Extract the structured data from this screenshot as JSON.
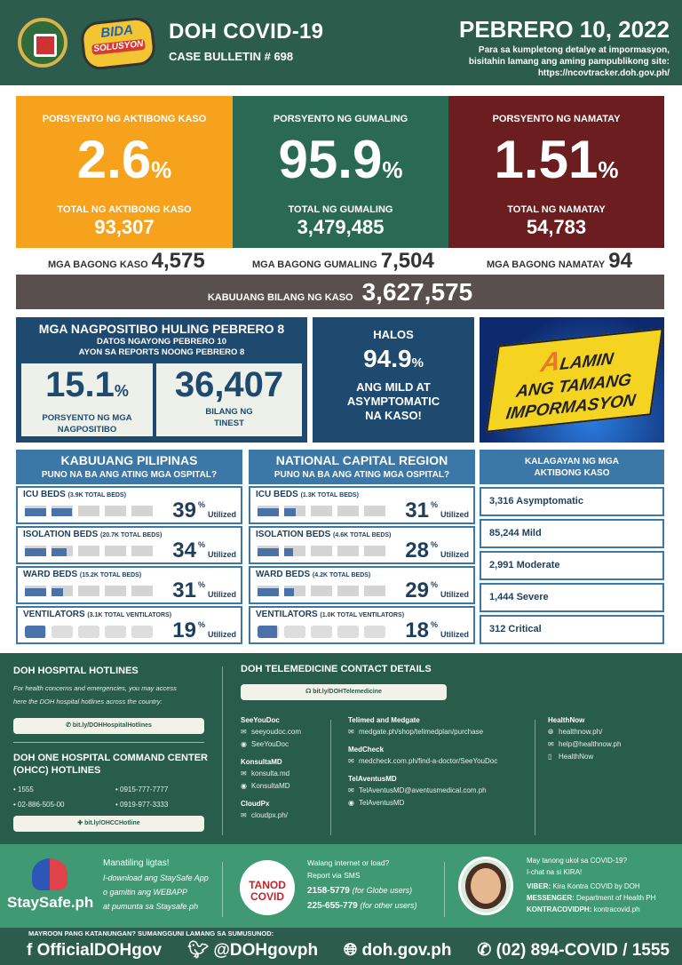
{
  "header": {
    "seal_text": "Republika ng Pilipinas Department of Health",
    "bida_logo": "BIDA SOLUSYON sa COVID-19",
    "title": "DOH COVID-19",
    "bulletin": "CASE BULLETIN # 698",
    "date": "PEBRERO 10, 2022",
    "note_lines": [
      "Para sa kumpletong detalye at impormasyon,",
      "bisitahin lamang ang aming pampublikong site:",
      "https://ncovtracker.doh.gov.ph/"
    ]
  },
  "colors": {
    "active": "#f6a21c",
    "recovered": "#2a6a55",
    "deaths": "#6b1d1f",
    "total": "#5a4f4f",
    "navy": "#1d4a6e",
    "panel_blue": "#3b78a8",
    "green": "#285c4b"
  },
  "cards": [
    {
      "label": "PORSYENTO NG AKTIBONG KASO",
      "percent": "2.6",
      "total_label": "TOTAL NG AKTIBONG KASO",
      "total": "93,307",
      "new_label": "MGA BAGONG KASO",
      "new": "4,575"
    },
    {
      "label": "PORSYENTO NG GUMALING",
      "percent": "95.9",
      "total_label": "TOTAL NG GUMALING",
      "total": "3,479,485",
      "new_label": "MGA BAGONG GUMALING",
      "new": "7,504"
    },
    {
      "label": "PORSYENTO NG NAMATAY",
      "percent": "1.51",
      "total_label": "TOTAL NG NAMATAY",
      "total": "54,783",
      "new_label": "MGA BAGONG NAMATAY",
      "new": "94"
    }
  ],
  "percent_sign": "%",
  "total_cases": {
    "label": "KABUUANG BILANG NG KASO",
    "value": "3,627,575"
  },
  "positivity": {
    "title": "MGA NAGPOSITIBO HULING PEBRERO 8",
    "sub1": "DATOS NGAYONG PEBRERO 10",
    "sub2": "AYON SA REPORTS NOONG PEBRERO 8",
    "rate": "15.1",
    "rate_label_1": "PORSYENTO NG MGA",
    "rate_label_2": "NAGPOSITIBO",
    "tested": "36,407",
    "tested_label_1": "BILANG NG",
    "tested_label_2": "TINEST"
  },
  "halos": {
    "top": "HALOS",
    "value": "94.9",
    "l1": "ANG MILD AT",
    "l2": "ASYMPTOMATIC",
    "l3": "NA KASO!"
  },
  "alamin": {
    "a": "A",
    "l1": "LAMIN",
    "l2": "ANG TAMANG",
    "l3": "IMPORMASYON"
  },
  "hospitals": [
    {
      "title": "KABUUANG PILIPINAS",
      "subtitle": "PUNO NA BA ANG ATING MGA OSPITAL?",
      "rows": [
        {
          "name": "ICU BEDS",
          "detail": "(3.9K TOTAL BEDS)",
          "percent": 39,
          "kind": "bed"
        },
        {
          "name": "ISOLATION BEDS",
          "detail": "(20.7K TOTAL BEDS)",
          "percent": 34,
          "kind": "bed"
        },
        {
          "name": "WARD BEDS",
          "detail": "(15.2K TOTAL BEDS)",
          "percent": 31,
          "kind": "bed"
        },
        {
          "name": "VENTILATORS",
          "detail": "(3.1K TOTAL VENTILATORS)",
          "percent": 19,
          "kind": "vent"
        }
      ]
    },
    {
      "title": "NATIONAL CAPITAL REGION",
      "subtitle": "PUNO NA BA ANG ATING MGA OSPITAL?",
      "rows": [
        {
          "name": "ICU BEDS",
          "detail": "(1.3K TOTAL BEDS)",
          "percent": 31,
          "kind": "bed"
        },
        {
          "name": "ISOLATION BEDS",
          "detail": "(4.6K TOTAL BEDS)",
          "percent": 28,
          "kind": "bed"
        },
        {
          "name": "WARD BEDS",
          "detail": "(4.2K TOTAL BEDS)",
          "percent": 29,
          "kind": "bed"
        },
        {
          "name": "VENTILATORS",
          "detail": "(1.0K TOTAL VENTILATORS)",
          "percent": 18,
          "kind": "vent"
        }
      ]
    }
  ],
  "utilized_label": "Utilized",
  "status": {
    "title_1": "KALAGAYAN NG MGA",
    "title_2": "AKTIBONG KASO",
    "items": [
      "3,316 Asymptomatic",
      "85,244 Mild",
      "2,991 Moderate",
      "1,444 Severe",
      "312 Critical"
    ]
  },
  "hotlines": {
    "title": "DOH HOSPITAL HOTLINES",
    "desc_1": "For health concerns and emergencies, you may access",
    "desc_2": "here the DOH hospital hotlines across the country:",
    "link": "bit.ly/DOHHospitalHotlines",
    "ohcc_title_1": "DOH ONE HOSPITAL COMMAND CENTER",
    "ohcc_title_2": "(OHCC) HOTLINES",
    "numbers": [
      "• 1555",
      "• 0915-777-7777",
      "• 02-886-505-00",
      "• 0919-977-3333"
    ],
    "ohcc_link": "bit.ly/OHCCHotline"
  },
  "telemedicine": {
    "title": "DOH TELEMEDICINE CONTACT DETAILS",
    "link": "bit.ly/DOHTelemedicine",
    "columns": [
      [
        {
          "name": "SeeYouDoc",
          "items": [
            "seeyoudoc.com",
            "SeeYouDoc"
          ]
        },
        {
          "name": "KonsultaMD",
          "items": [
            "konsulta.md",
            "KonsultaMD"
          ]
        },
        {
          "name": "CloudPx",
          "items": [
            "cloudpx.ph/"
          ]
        }
      ],
      [
        {
          "name": "Telimed and Medgate",
          "items": [
            "medgate.ph/shop/telimedplan/purchase"
          ]
        },
        {
          "name": "MedCheck",
          "items": [
            "medcheck.com.ph/find-a-doctor/SeeYouDoc"
          ]
        },
        {
          "name": "TelAventusMD",
          "items": [
            "TelAventusMD@aventusmedical.com.ph",
            "TelAventusMD"
          ]
        }
      ],
      [
        {
          "name": "HealthNow",
          "items": [
            "healthnow.ph/",
            "help@healthnow.ph",
            "HealthNow"
          ]
        }
      ]
    ]
  },
  "staysafe": {
    "logo": "StaySafe.ph",
    "title": "Manatiling ligtas!",
    "l1": "I-download ang StaySafe App",
    "l2": "o gamitin ang WEBAPP",
    "l3": "at pumunta sa Staysafe.ph"
  },
  "tanod": {
    "logo": "TANOD COVID",
    "l1": "Walang internet or load?",
    "l2": "Report via SMS",
    "n1": "2158-5779",
    "n1_note": "(for Globe users)",
    "n2": "225-655-779",
    "n2_note": "(for other users)"
  },
  "kira": {
    "l1": "May tanong ukol sa COVID-19?",
    "l2": "I-chat na si KIRA!",
    "viber_label": "VIBER:",
    "viber": "Kira Kontra COVID by DOH",
    "messenger_label": "MESSENGER:",
    "messenger": "Department of Health PH",
    "kc_label": "KONTRACOVIDPH:",
    "kc": "kontracovid.ph"
  },
  "footer": {
    "question": "MAYROON PANG KATANUNGAN? SUMANGGUNI LAMANG SA SUMUSUNOD:",
    "facebook": "OfficialDOHgov",
    "twitter": "@DOHgovph",
    "web": "doh.gov.ph",
    "phone": "(02) 894-COVID  /  1555"
  }
}
